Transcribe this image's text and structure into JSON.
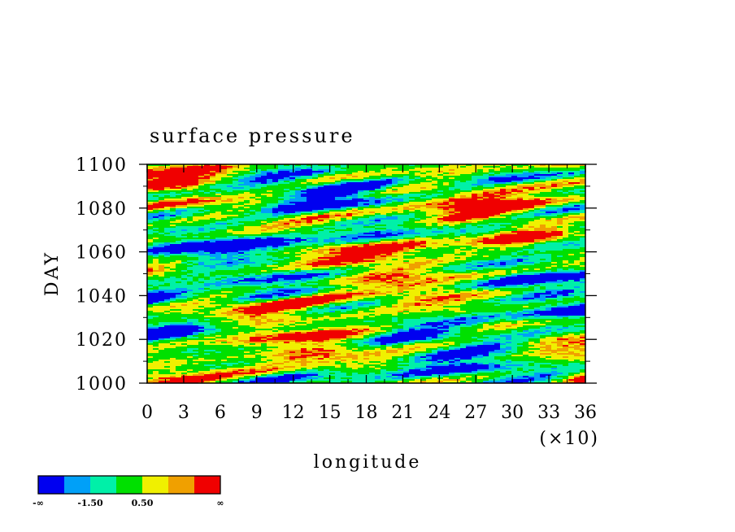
{
  "chart_data": {
    "type": "heatmap",
    "title": "surface pressure",
    "xlabel": "longitude",
    "ylabel": "DAY",
    "x_multiplier": "(×10)",
    "xlim": [
      0,
      36
    ],
    "ylim": [
      1000,
      1100
    ],
    "x_ticks": [
      "0",
      "3",
      "6",
      "9",
      "12",
      "15",
      "18",
      "21",
      "24",
      "27",
      "30",
      "33",
      "36"
    ],
    "y_ticks": [
      "1000",
      "1020",
      "1040",
      "1060",
      "1080",
      "1100"
    ],
    "grid": false,
    "colorbar": {
      "placement": "bottom-left",
      "colors": [
        "#0000f0",
        "#00a0f8",
        "#00f0a8",
        "#00e000",
        "#f0f000",
        "#f0a000",
        "#f00000"
      ],
      "labels": [
        "-∞",
        "-1.50",
        "0.50",
        "∞"
      ]
    }
  }
}
